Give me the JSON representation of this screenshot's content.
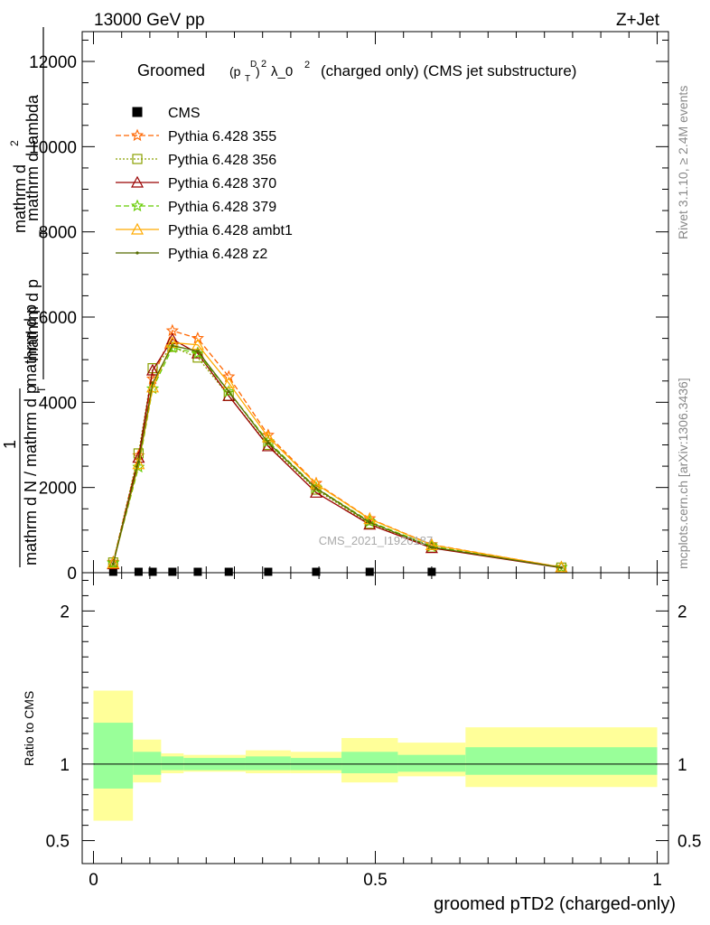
{
  "header": {
    "left": "13000 GeV pp",
    "right": "Z+Jet"
  },
  "side_labels": {
    "rivet": "Rivet 3.1.10, ≥ 2.4M events",
    "mcplots": "mcplots.cern.ch [arXiv:1306.3436]"
  },
  "watermark": "CMS_2021_I1920187",
  "chart_data": [
    {
      "type": "line",
      "title_prefix": "Groomed",
      "title_math_base": "(p",
      "title_math_sub": "T",
      "title_math_sup": "D",
      "title_math_close": ")",
      "title_math_sq": "2",
      "title_lambda": "λ_0",
      "title_lambda_sup": "2",
      "title_rest": "(charged only) (CMS jet substructure)",
      "ylabel_num_top": "mathrm d",
      "ylabel_num_sup": "2",
      "ylabel_num_N": "N",
      "ylabel_den": "mathrm d p",
      "ylabel_den_sub": "T",
      "ylabel_den_rest": "mathrm d lambda",
      "ylabel_pre": "1",
      "ylabel_pre_den": "mathrm d N / mathrm d p",
      "ylabel_pre_den_sub": "T",
      "ylabel_mid": "mathrm d p",
      "ylim": [
        0,
        12700
      ],
      "xlim": [
        -0.02,
        1.02
      ],
      "yticks": [
        0,
        2000,
        4000,
        6000,
        8000,
        10000,
        12000
      ],
      "ytick_labels": [
        "0",
        "2000",
        "4000",
        "6000",
        "8000",
        "10000",
        "12000"
      ],
      "legend_position": "top-left",
      "series": [
        {
          "name": "CMS",
          "color": "#000000",
          "marker": "square",
          "dash": "",
          "x": [
            0.035,
            0.08,
            0.105,
            0.14,
            0.185,
            0.24,
            0.31,
            0.395,
            0.49,
            0.6
          ],
          "y": [
            0,
            0,
            0,
            0,
            0,
            0,
            0,
            0,
            0,
            0
          ]
        },
        {
          "name": "Pythia 6.428 355",
          "color": "#ff6600",
          "marker": "star",
          "dash": "6,3",
          "x": [
            0.035,
            0.08,
            0.105,
            0.14,
            0.185,
            0.24,
            0.31,
            0.395,
            0.49,
            0.6,
            0.83
          ],
          "y": [
            250,
            2750,
            4550,
            5680,
            5500,
            4600,
            3230,
            2100,
            1270,
            660,
            130
          ]
        },
        {
          "name": "Pythia 6.428 356",
          "color": "#8aa000",
          "marker": "square-open",
          "dash": "2,2",
          "x": [
            0.035,
            0.08,
            0.105,
            0.14,
            0.185,
            0.24,
            0.31,
            0.395,
            0.49,
            0.6,
            0.83
          ],
          "y": [
            240,
            2800,
            4800,
            5300,
            5050,
            4150,
            3000,
            1950,
            1150,
            590,
            120
          ]
        },
        {
          "name": "Pythia 6.428 370",
          "color": "#990000",
          "marker": "triangle-open",
          "dash": "",
          "x": [
            0.035,
            0.08,
            0.105,
            0.14,
            0.185,
            0.24,
            0.31,
            0.395,
            0.49,
            0.6,
            0.83
          ],
          "y": [
            200,
            2700,
            4750,
            5480,
            5150,
            4150,
            2970,
            1880,
            1130,
            580,
            115
          ]
        },
        {
          "name": "Pythia 6.428 379",
          "color": "#66cc00",
          "marker": "star",
          "dash": "6,3",
          "x": [
            0.035,
            0.08,
            0.105,
            0.14,
            0.185,
            0.24,
            0.31,
            0.395,
            0.49,
            0.6,
            0.83
          ],
          "y": [
            230,
            2480,
            4320,
            5280,
            5150,
            4250,
            3080,
            1990,
            1200,
            620,
            125
          ]
        },
        {
          "name": "Pythia 6.428 ambt1",
          "color": "#ffaa00",
          "marker": "triangle-open",
          "dash": "",
          "x": [
            0.035,
            0.08,
            0.105,
            0.14,
            0.185,
            0.24,
            0.31,
            0.395,
            0.49,
            0.6,
            0.83
          ],
          "y": [
            220,
            2550,
            4350,
            5400,
            5350,
            4450,
            3180,
            2080,
            1260,
            650,
            130
          ]
        },
        {
          "name": "Pythia 6.428 z2",
          "color": "#556b00",
          "marker": "dot",
          "dash": "",
          "x": [
            0.035,
            0.08,
            0.105,
            0.14,
            0.185,
            0.24,
            0.31,
            0.395,
            0.49,
            0.6,
            0.83
          ],
          "y": [
            210,
            2600,
            4450,
            5330,
            5200,
            4250,
            3050,
            1980,
            1180,
            600,
            120
          ]
        }
      ]
    },
    {
      "type": "area",
      "ylabel": "Ratio to CMS",
      "xlabel": "groomed pTD2 (charged-only)",
      "xlim": [
        -0.02,
        1.02
      ],
      "ylim": [
        0.35,
        2.25
      ],
      "xticks": [
        0,
        0.5,
        1
      ],
      "xtick_labels": [
        "0",
        "0.5",
        "1"
      ],
      "yticks": [
        0.5,
        1,
        2
      ],
      "ytick_labels": [
        "0.5",
        "1",
        "2"
      ],
      "bins": [
        {
          "lo": 0.0,
          "hi": 0.07,
          "inner": [
            0.84,
            1.27
          ],
          "outer": [
            0.63,
            1.48
          ]
        },
        {
          "lo": 0.07,
          "hi": 0.12,
          "inner": [
            0.93,
            1.08
          ],
          "outer": [
            0.88,
            1.16
          ]
        },
        {
          "lo": 0.12,
          "hi": 0.16,
          "inner": [
            0.96,
            1.05
          ],
          "outer": [
            0.94,
            1.07
          ]
        },
        {
          "lo": 0.16,
          "hi": 0.27,
          "inner": [
            0.96,
            1.04
          ],
          "outer": [
            0.95,
            1.06
          ]
        },
        {
          "lo": 0.27,
          "hi": 0.35,
          "inner": [
            0.96,
            1.05
          ],
          "outer": [
            0.94,
            1.09
          ]
        },
        {
          "lo": 0.35,
          "hi": 0.44,
          "inner": [
            0.96,
            1.04
          ],
          "outer": [
            0.94,
            1.08
          ]
        },
        {
          "lo": 0.44,
          "hi": 0.54,
          "inner": [
            0.94,
            1.08
          ],
          "outer": [
            0.88,
            1.17
          ]
        },
        {
          "lo": 0.54,
          "hi": 0.66,
          "inner": [
            0.95,
            1.06
          ],
          "outer": [
            0.92,
            1.14
          ]
        },
        {
          "lo": 0.66,
          "hi": 1.0,
          "inner": [
            0.93,
            1.11
          ],
          "outer": [
            0.85,
            1.24
          ]
        }
      ],
      "band_inner_color": "#99ff99",
      "band_outer_color": "#ffff99"
    }
  ]
}
